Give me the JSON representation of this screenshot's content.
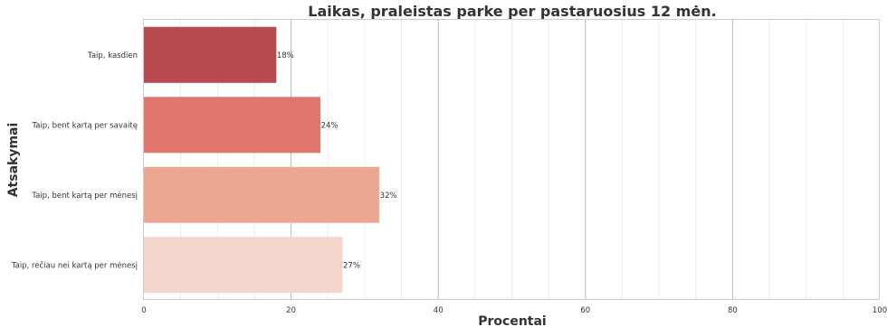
{
  "chart_data": {
    "type": "bar",
    "orientation": "horizontal",
    "title": "Laikas, praleistas parke per pastaruosius 12 mėn.",
    "xlabel": "Procentai",
    "ylabel": "Atsakymai",
    "categories": [
      "Taip, kasdien",
      "Taip, bent kartą per savaitę",
      "Taip, bent kartą per mėnesį",
      "Taip, rečiau nei kartą per mėnesį"
    ],
    "values": [
      18,
      24,
      32,
      27
    ],
    "data_labels": [
      "18%",
      "24%",
      "32%",
      "27%"
    ],
    "colors": [
      "#b64a4f",
      "#e0766c",
      "#eca891",
      "#f4d5cb"
    ],
    "xlim": [
      0,
      100
    ],
    "xticks": [
      0,
      20,
      40,
      60,
      80,
      100
    ],
    "xtick_labels": [
      "0",
      "20",
      "40",
      "60",
      "80",
      "100"
    ],
    "grid": true
  }
}
